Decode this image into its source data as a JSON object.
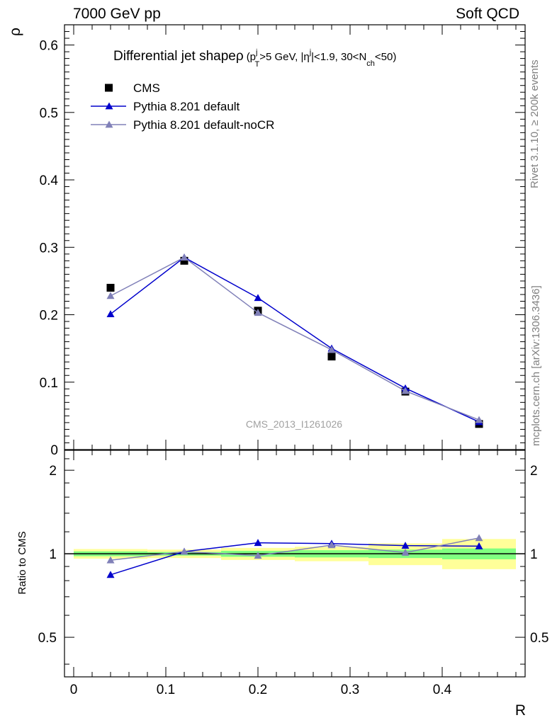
{
  "header": {
    "left": "7000 GeV pp",
    "right": "Soft QCD"
  },
  "side_labels": {
    "rivet": "Rivet 3.1.10, ≥ 200k events",
    "mcplots": "mcplots.cern.ch [arXiv:1306.3436]"
  },
  "chart_data": [
    {
      "type": "scatter",
      "panel": "main",
      "title_parts": {
        "main": "Differential jet shape",
        "rho": "ρ",
        "open": "(p",
        "sub_T": "T",
        "sup_j1": "j",
        "mid1": ">5 GeV, |η",
        "sup_j2": "j",
        "mid2": "|<1.9, 30<N",
        "sub_ch": "ch",
        "end": "<50)"
      },
      "ylabel": "ρ",
      "xlabel": "R",
      "xlim": [
        -0.01,
        0.49
      ],
      "ylim": [
        0,
        0.63
      ],
      "yticks": [
        0,
        0.1,
        0.2,
        0.3,
        0.4,
        0.5,
        0.6
      ],
      "ytick_labels": [
        "0",
        "0.1",
        "0.2",
        "0.3",
        "0.4",
        "0.5",
        "0.6"
      ],
      "watermark": "CMS_2013_I1261026",
      "legend_position": "top-left",
      "series": [
        {
          "name": "CMS",
          "color": "#000000",
          "marker": "square",
          "line": false,
          "x": [
            0.04,
            0.12,
            0.2,
            0.28,
            0.36,
            0.44
          ],
          "y": [
            0.24,
            0.28,
            0.206,
            0.138,
            0.086,
            0.038
          ]
        },
        {
          "name": "Pythia 8.201 default",
          "color": "#0000cc",
          "marker": "triangle",
          "line": true,
          "x": [
            0.04,
            0.12,
            0.2,
            0.28,
            0.36,
            0.44
          ],
          "y": [
            0.201,
            0.285,
            0.225,
            0.15,
            0.091,
            0.041
          ]
        },
        {
          "name": "Pythia 8.201 default-noCR",
          "color": "#8080b8",
          "marker": "triangle",
          "line": true,
          "x": [
            0.04,
            0.12,
            0.2,
            0.28,
            0.36,
            0.44
          ],
          "y": [
            0.228,
            0.285,
            0.203,
            0.148,
            0.087,
            0.044
          ]
        }
      ]
    },
    {
      "type": "line",
      "panel": "ratio",
      "ylabel": "Ratio to CMS",
      "xlabel": "R",
      "xlim": [
        -0.01,
        0.49
      ],
      "ylim": [
        0.36,
        2.36
      ],
      "log_y": true,
      "xticks": [
        0,
        0.1,
        0.2,
        0.3,
        0.4
      ],
      "xtick_labels": [
        "0",
        "0.1",
        "0.2",
        "0.3",
        "0.4"
      ],
      "yticks": [
        0.5,
        1,
        2
      ],
      "ytick_labels": [
        "0.5",
        "1",
        "2"
      ],
      "band_colors": {
        "stat": "#80ff80",
        "total": "#ffff99"
      },
      "bands": [
        {
          "x0": 0.0,
          "x1": 0.08,
          "stat": [
            0.98,
            1.02
          ],
          "total": [
            0.96,
            1.04
          ]
        },
        {
          "x0": 0.08,
          "x1": 0.16,
          "stat": [
            0.985,
            1.015
          ],
          "total": [
            0.965,
            1.035
          ]
        },
        {
          "x0": 0.16,
          "x1": 0.24,
          "stat": [
            0.975,
            1.025
          ],
          "total": [
            0.95,
            1.05
          ]
        },
        {
          "x0": 0.24,
          "x1": 0.32,
          "stat": [
            0.97,
            1.03
          ],
          "total": [
            0.94,
            1.06
          ]
        },
        {
          "x0": 0.32,
          "x1": 0.4,
          "stat": [
            0.965,
            1.035
          ],
          "total": [
            0.91,
            1.09
          ]
        },
        {
          "x0": 0.4,
          "x1": 0.48,
          "stat": [
            0.955,
            1.045
          ],
          "total": [
            0.88,
            1.13
          ]
        }
      ],
      "series": [
        {
          "name": "Pythia 8.201 default",
          "color": "#0000cc",
          "x": [
            0.04,
            0.12,
            0.2,
            0.28,
            0.36,
            0.44
          ],
          "y": [
            0.84,
            1.018,
            1.095,
            1.088,
            1.07,
            1.065
          ]
        },
        {
          "name": "Pythia 8.201 default-noCR",
          "color": "#8080b8",
          "x": [
            0.04,
            0.12,
            0.2,
            0.28,
            0.36,
            0.44
          ],
          "y": [
            0.948,
            1.018,
            0.985,
            1.075,
            1.01,
            1.14
          ]
        }
      ]
    }
  ]
}
